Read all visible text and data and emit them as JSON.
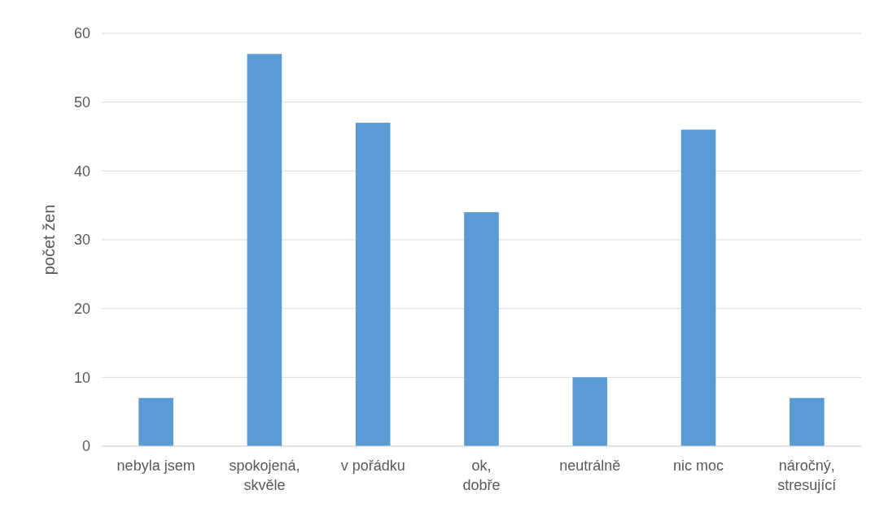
{
  "chart_data": {
    "type": "bar",
    "ylabel": "počet žen",
    "categories": [
      "nebyla jsem",
      "spokojená, skvěle",
      "v pořádku",
      "ok, dobře",
      "neutrálně",
      "nic moc",
      "náročný, stresující"
    ],
    "values": [
      7,
      57,
      47,
      34,
      10,
      46,
      7
    ],
    "color": "#5b9bd5",
    "ylim": [
      0,
      60
    ],
    "yticks": [
      0,
      10,
      20,
      30,
      40,
      50,
      60
    ],
    "grid": "y"
  }
}
